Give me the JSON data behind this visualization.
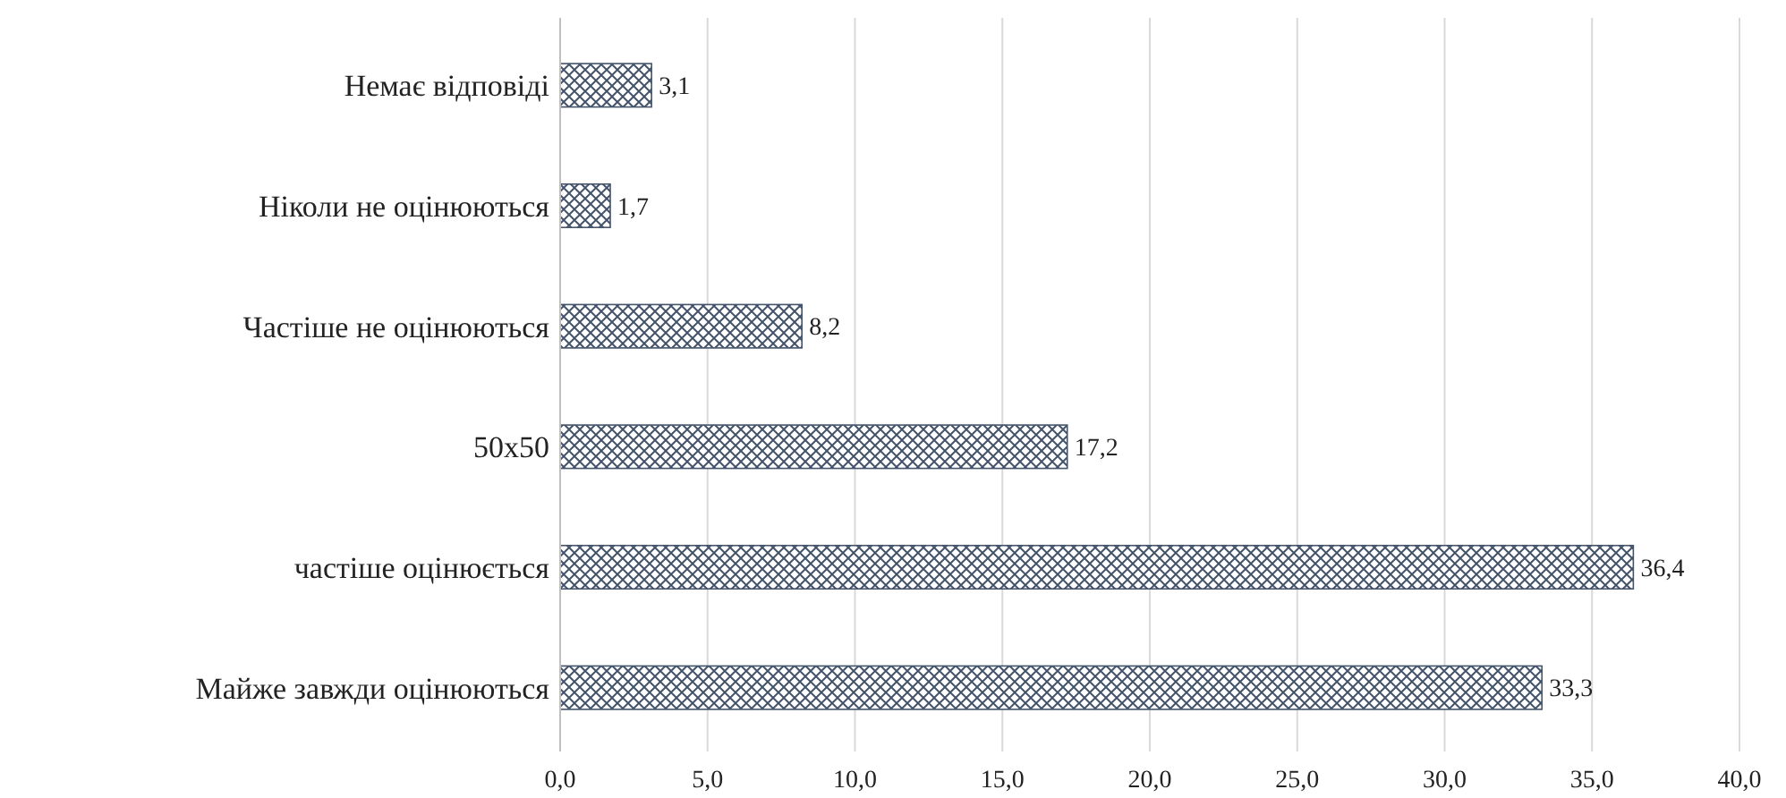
{
  "chart_data": {
    "type": "bar",
    "orientation": "horizontal",
    "categories": [
      "Немає відповіді",
      "Ніколи не оцінюються",
      "Частіше не оцінюються",
      "50x50",
      "частіше оцінюється",
      "Майже завжди оцінюються"
    ],
    "values": [
      3.1,
      1.7,
      8.2,
      17.2,
      36.4,
      33.3
    ],
    "value_labels": [
      "3,1",
      "1,7",
      "8,2",
      "17,2",
      "36,4",
      "33,3"
    ],
    "color": "#44546a",
    "xlim": [
      0,
      40
    ],
    "xticks": [
      {
        "value": 0,
        "label": "0,0"
      },
      {
        "value": 5,
        "label": "5,0"
      },
      {
        "value": 10,
        "label": "10,0"
      },
      {
        "value": 15,
        "label": "15,0"
      },
      {
        "value": 20,
        "label": "20,0"
      },
      {
        "value": 25,
        "label": "25,0"
      },
      {
        "value": 30,
        "label": "30,0"
      },
      {
        "value": 35,
        "label": "35,0"
      },
      {
        "value": 40,
        "label": "40,0"
      }
    ],
    "grid": "x"
  }
}
